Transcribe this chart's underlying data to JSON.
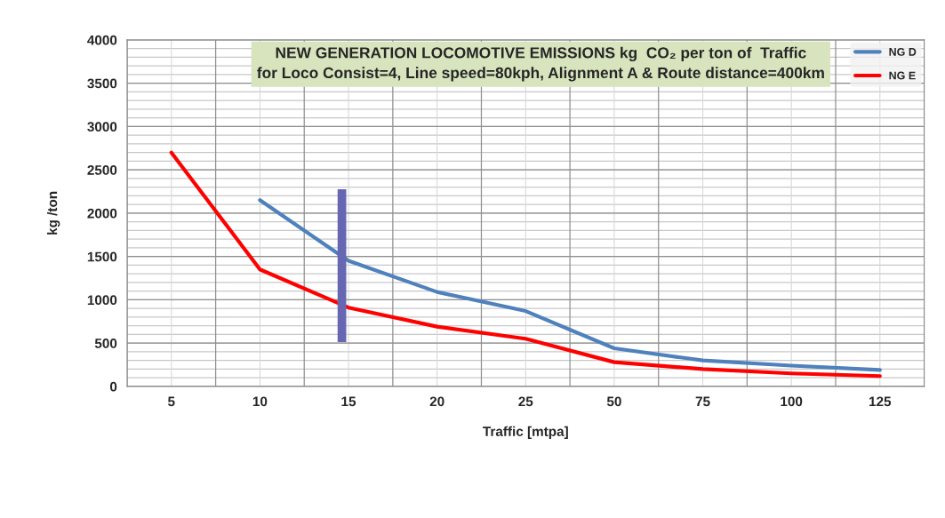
{
  "chart_data": {
    "type": "line",
    "title": "NEW GENERATION LOCOMOTIVE EMISSIONS kg  CO₂ per ton of  Traffic",
    "subtitle": "for Loco Consist=4, Line speed=80kph, Alignment A & Route distance=400km",
    "xlabel": "Traffic [mtpa]",
    "ylabel": "kg /ton",
    "categories": [
      "5",
      "10",
      "15",
      "20",
      "25",
      "50",
      "75",
      "100",
      "125"
    ],
    "series": [
      {
        "name": "NG D",
        "color": "#4f81bd",
        "values": [
          null,
          2150,
          1450,
          1090,
          870,
          440,
          300,
          240,
          190
        ]
      },
      {
        "name": "NG E",
        "color": "#ff0000",
        "values": [
          2700,
          1350,
          910,
          690,
          550,
          280,
          200,
          150,
          120
        ]
      }
    ],
    "ylim": [
      0,
      4000
    ],
    "yticks": [
      0,
      500,
      1000,
      1500,
      2000,
      2500,
      3000,
      3500,
      4000
    ],
    "grid": true,
    "legend": "top right",
    "marker": "none",
    "line_style": "solid"
  }
}
